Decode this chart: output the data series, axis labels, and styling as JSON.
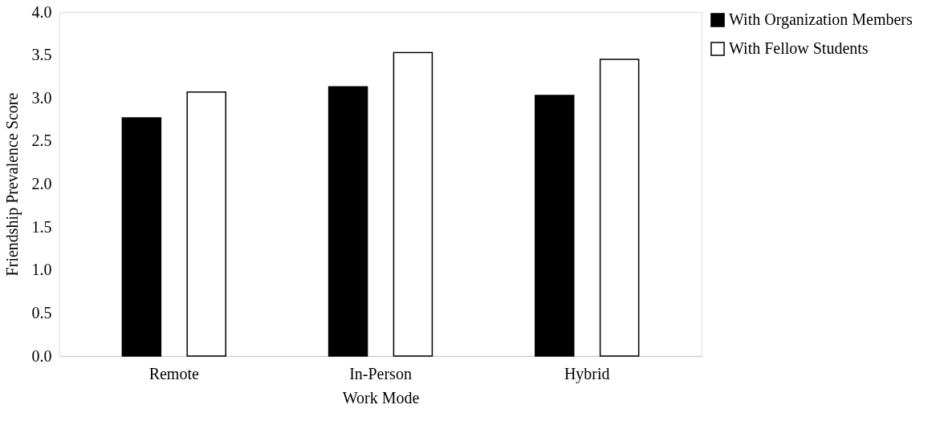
{
  "chart_data": {
    "type": "bar",
    "xlabel": "Work Mode",
    "ylabel": "Friendship Prevalence Score",
    "categories": [
      "Remote",
      "In-Person",
      "Hybrid"
    ],
    "series": [
      {
        "name": "With Organization Members",
        "color": "#000000",
        "values": [
          2.77,
          3.13,
          3.03
        ]
      },
      {
        "name": "With Fellow Students",
        "color": "#ffffff",
        "values": [
          3.07,
          3.53,
          3.45
        ]
      }
    ],
    "ylim": [
      0,
      4
    ],
    "yticks": [
      {
        "value": 0,
        "label": "0.0"
      },
      {
        "value": 0.5,
        "label": "0.5"
      },
      {
        "value": 1,
        "label": "1.0"
      },
      {
        "value": 1.5,
        "label": "1.5"
      },
      {
        "value": 2,
        "label": "2.0"
      },
      {
        "value": 2.5,
        "label": "2.5"
      },
      {
        "value": 3,
        "label": "3.0"
      },
      {
        "value": 3.5,
        "label": "3.5"
      },
      {
        "value": 4,
        "label": "4.0"
      }
    ],
    "grid": false,
    "legend": "right"
  }
}
